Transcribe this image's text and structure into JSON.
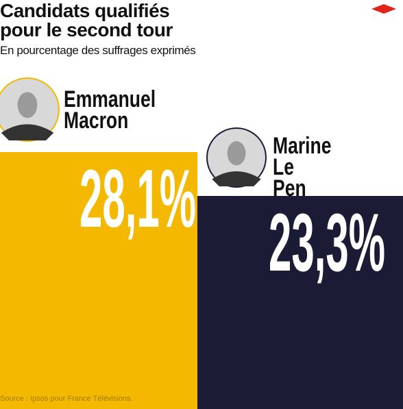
{
  "chart_data": {
    "type": "bar",
    "title": "Candidats qualifiés pour le second tour",
    "subtitle": "En pourcentage des suffrages exprimés",
    "source": "Source : Ipsos pour France Télévisions.",
    "categories": [
      "Emmanuel Macron",
      "Marine Le Pen"
    ],
    "values": [
      28.1,
      23.3
    ],
    "value_labels": [
      "28,1%",
      "23,3%"
    ],
    "colors": [
      "#f5b800",
      "#1b1b35"
    ]
  }
}
